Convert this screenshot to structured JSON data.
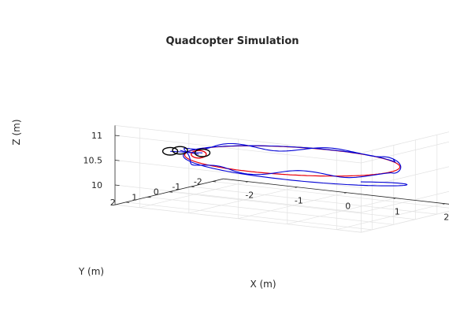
{
  "chart_data": {
    "type": "line3d",
    "title": "Quadcopter Simulation",
    "xlabel": "X (m)",
    "ylabel": "Y (m)",
    "zlabel": "Z (m)",
    "xlim": [
      -2.5,
      2.5
    ],
    "ylim": [
      -2.5,
      2.5
    ],
    "zlim": [
      9.6,
      11.2
    ],
    "xticks": [
      "-2",
      "-1",
      "0",
      "1",
      "2"
    ],
    "yticks": [
      "-2",
      "-1",
      "0",
      "1",
      "2"
    ],
    "zticks": [
      "10",
      "10.5",
      "11"
    ],
    "grid": true,
    "colors": {
      "reference": "#e8000b",
      "actual": "#0000d6",
      "quadcopter": "#000000"
    },
    "series": [
      {
        "role": "reference trajectory",
        "color": "#e8000b",
        "shape": "horizontal circle",
        "center": [
          0,
          0
        ],
        "radius": 2,
        "z": 10.5
      },
      {
        "role": "actual trajectory",
        "color": "#0000d6",
        "start": [
          -0.15,
          -2.2,
          9.9
        ],
        "shape": "spiral into horizontal circle, radius about 2, small oscillations",
        "z": 10.5
      }
    ],
    "quadcopter": {
      "position": [
        -1.95,
        0.4,
        10.5
      ],
      "rotors": 4,
      "color": "#000000"
    }
  }
}
